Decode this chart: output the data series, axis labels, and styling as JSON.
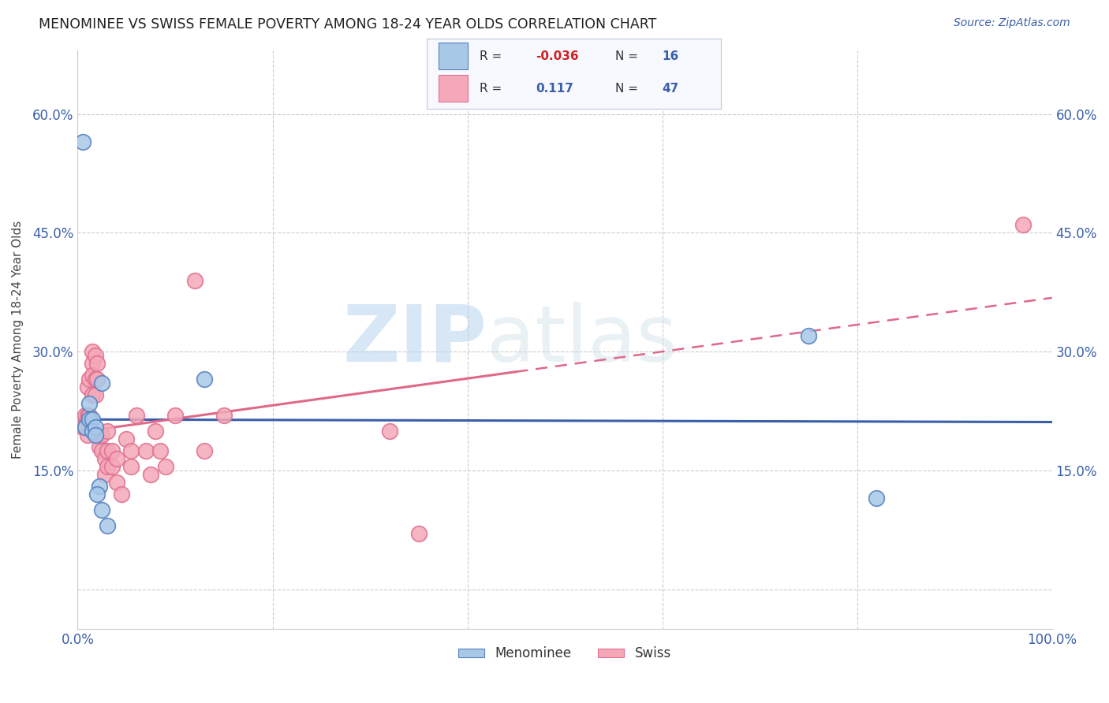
{
  "title": "MENOMINEE VS SWISS FEMALE POVERTY AMONG 18-24 YEAR OLDS CORRELATION CHART",
  "source": "Source: ZipAtlas.com",
  "ylabel": "Female Poverty Among 18-24 Year Olds",
  "xlabel": "",
  "xlim": [
    0,
    1.0
  ],
  "ylim": [
    -0.05,
    0.68
  ],
  "xticks": [
    0.0,
    0.2,
    0.4,
    0.6,
    0.8,
    1.0
  ],
  "xticklabels": [
    "0.0%",
    "",
    "",
    "",
    "",
    "100.0%"
  ],
  "yticks": [
    0.0,
    0.15,
    0.3,
    0.45,
    0.6
  ],
  "yticklabels": [
    "",
    "15.0%",
    "30.0%",
    "45.0%",
    "60.0%"
  ],
  "watermark_zip": "ZIP",
  "watermark_atlas": "atlas",
  "menominee_R": -0.036,
  "menominee_N": 16,
  "swiss_R": 0.117,
  "swiss_N": 47,
  "menominee_color": "#a8c8e8",
  "swiss_color": "#f4a8b8",
  "menominee_edge_color": "#5580c0",
  "swiss_edge_color": "#e07090",
  "menominee_line_color": "#3a5faa",
  "swiss_line_color": "#e06888",
  "menominee_x": [
    0.008,
    0.012,
    0.012,
    0.015,
    0.015,
    0.018,
    0.018,
    0.022,
    0.025,
    0.025,
    0.03,
    0.13,
    0.75,
    0.82,
    0.005,
    0.02
  ],
  "menominee_y": [
    0.205,
    0.235,
    0.215,
    0.215,
    0.2,
    0.205,
    0.195,
    0.13,
    0.1,
    0.26,
    0.08,
    0.265,
    0.32,
    0.115,
    0.565,
    0.12
  ],
  "swiss_x": [
    0.005,
    0.008,
    0.008,
    0.01,
    0.01,
    0.01,
    0.012,
    0.012,
    0.015,
    0.015,
    0.015,
    0.015,
    0.018,
    0.018,
    0.018,
    0.02,
    0.02,
    0.022,
    0.022,
    0.025,
    0.025,
    0.028,
    0.028,
    0.03,
    0.03,
    0.03,
    0.035,
    0.035,
    0.04,
    0.04,
    0.045,
    0.05,
    0.055,
    0.055,
    0.06,
    0.07,
    0.075,
    0.08,
    0.085,
    0.09,
    0.1,
    0.12,
    0.13,
    0.15,
    0.32,
    0.35,
    0.97
  ],
  "swiss_y": [
    0.205,
    0.22,
    0.205,
    0.255,
    0.22,
    0.195,
    0.265,
    0.22,
    0.3,
    0.285,
    0.27,
    0.245,
    0.295,
    0.265,
    0.245,
    0.285,
    0.265,
    0.195,
    0.18,
    0.195,
    0.175,
    0.165,
    0.145,
    0.2,
    0.175,
    0.155,
    0.175,
    0.155,
    0.165,
    0.135,
    0.12,
    0.19,
    0.175,
    0.155,
    0.22,
    0.175,
    0.145,
    0.2,
    0.175,
    0.155,
    0.22,
    0.39,
    0.175,
    0.22,
    0.2,
    0.07,
    0.46
  ],
  "legend_box_color": "#f0f4ff",
  "legend_border_color": "#b0b8d0",
  "background_color": "#ffffff",
  "grid_color": "#cccccc",
  "tick_color": "#3a5faa",
  "label_color": "#444444"
}
